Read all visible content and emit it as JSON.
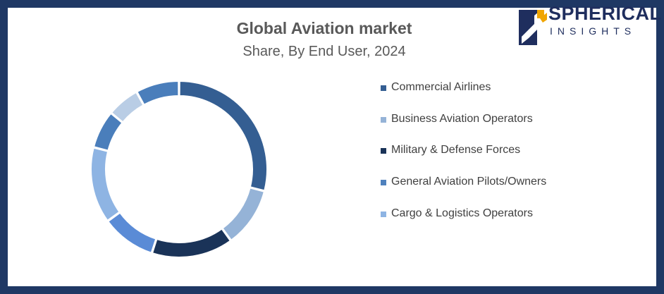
{
  "header": {
    "title": "Global Aviation market",
    "subtitle": "Share, By End User, 2024"
  },
  "logo": {
    "word1": "SPHERICAL",
    "word2": "INSIGHTS"
  },
  "colors": {
    "border": "#1f3864",
    "commercial": "#345e92",
    "business": "#95b3d7",
    "military": "#1a3358",
    "general": "#4f81bd",
    "cargo": "#8eb4e3"
  },
  "chart_data": {
    "type": "pie",
    "title": "Global Aviation market",
    "subtitle": "Share, By End User, 2024",
    "legend_position": "right",
    "slices": [
      {
        "label": "Commercial Airlines",
        "value": 29,
        "color": "#345e92"
      },
      {
        "label": "Business Aviation Operators",
        "value": 11,
        "color": "#95b3d7"
      },
      {
        "label": "Military & Defense Forces",
        "value": 15,
        "color": "#1a3358"
      },
      {
        "label": "General Aviation Pilots/Owners",
        "value": 10,
        "color": "#5a8bd6"
      },
      {
        "label": "Cargo & Logistics Operators",
        "value": 14,
        "color": "#8eb4e3"
      },
      {
        "label": "",
        "value": 7,
        "color": "#4a7ebb"
      },
      {
        "label": "",
        "value": 6,
        "color": "#b9cde5"
      },
      {
        "label": "",
        "value": 8,
        "color": "#4a7ebb"
      }
    ],
    "legend": [
      {
        "label": "Commercial Airlines",
        "color": "#345e92"
      },
      {
        "label": "Business Aviation Operators",
        "color": "#95b3d7"
      },
      {
        "label": "Military & Defense Forces",
        "color": "#1a3358"
      },
      {
        "label": "General Aviation Pilots/Owners",
        "color": "#4f81bd"
      },
      {
        "label": "Cargo & Logistics Operators",
        "color": "#8eb4e3"
      }
    ]
  }
}
